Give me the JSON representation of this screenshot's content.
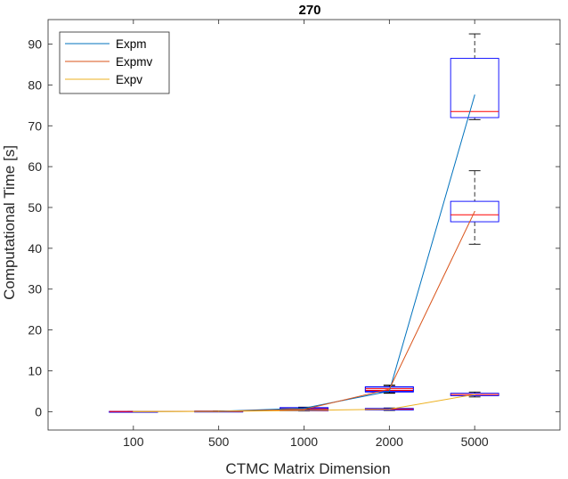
{
  "chart_data": {
    "type": "box",
    "title": "270",
    "xlabel": "CTMC Matrix Dimension",
    "ylabel": "Computational Time [s]",
    "categories": [
      "100",
      "500",
      "1000",
      "2000",
      "5000"
    ],
    "ylim": [
      -4.5,
      96
    ],
    "yticks": [
      "0",
      "10",
      "20",
      "30",
      "40",
      "50",
      "60",
      "70",
      "80",
      "90"
    ],
    "grid": false,
    "legend_position": "top-left",
    "series": [
      {
        "name": "Expm",
        "color": "#0072BD",
        "values": [
          0.02,
          0.1,
          0.85,
          5.0,
          77.5
        ]
      },
      {
        "name": "Expmv",
        "color": "#D95319",
        "values": [
          0.02,
          0.1,
          0.55,
          5.5,
          49.0
        ]
      },
      {
        "name": "Expv",
        "color": "#EDB120",
        "values": [
          0.01,
          0.05,
          0.3,
          0.6,
          4.2
        ]
      }
    ],
    "boxes": [
      {
        "category": "100",
        "set": "Expm",
        "q1": 0.0,
        "median": 0.02,
        "q3": 0.04,
        "whisker_low": 0.0,
        "whisker_high": 0.05
      },
      {
        "category": "100",
        "set": "Expmv",
        "q1": 0.0,
        "median": 0.02,
        "q3": 0.03,
        "whisker_low": 0.0,
        "whisker_high": 0.04
      },
      {
        "category": "100",
        "set": "Expv",
        "q1": 0.0,
        "median": 0.01,
        "q3": 0.02,
        "whisker_low": 0.0,
        "whisker_high": 0.03
      },
      {
        "category": "500",
        "set": "Expm",
        "q1": 0.05,
        "median": 0.1,
        "q3": 0.15,
        "whisker_low": 0.03,
        "whisker_high": 0.2
      },
      {
        "category": "500",
        "set": "Expmv",
        "q1": 0.05,
        "median": 0.1,
        "q3": 0.14,
        "whisker_low": 0.03,
        "whisker_high": 0.18
      },
      {
        "category": "500",
        "set": "Expv",
        "q1": 0.02,
        "median": 0.05,
        "q3": 0.08,
        "whisker_low": 0.01,
        "whisker_high": 0.1
      },
      {
        "category": "1000",
        "set": "Expm",
        "q1": 0.55,
        "median": 0.8,
        "q3": 1.0,
        "whisker_low": 0.45,
        "whisker_high": 1.1
      },
      {
        "category": "1000",
        "set": "Expmv",
        "q1": 0.4,
        "median": 0.55,
        "q3": 0.75,
        "whisker_low": 0.3,
        "whisker_high": 0.9
      },
      {
        "category": "1000",
        "set": "Expv",
        "q1": 0.2,
        "median": 0.3,
        "q3": 0.4,
        "whisker_low": 0.15,
        "whisker_high": 0.5
      },
      {
        "category": "2000",
        "set": "Expm",
        "q1": 4.8,
        "median": 5.2,
        "q3": 6.0,
        "whisker_low": 4.5,
        "whisker_high": 6.5
      },
      {
        "category": "2000",
        "set": "Expmv",
        "q1": 5.0,
        "median": 5.6,
        "q3": 6.1,
        "whisker_low": 4.6,
        "whisker_high": 6.4
      },
      {
        "category": "2000",
        "set": "Expv",
        "q1": 0.4,
        "median": 0.6,
        "q3": 0.8,
        "whisker_low": 0.3,
        "whisker_high": 0.9
      },
      {
        "category": "5000",
        "set": "Expm",
        "q1": 72.0,
        "median": 73.5,
        "q3": 86.5,
        "whisker_low": 71.5,
        "whisker_high": 92.5
      },
      {
        "category": "5000",
        "set": "Expmv",
        "q1": 46.5,
        "median": 48.2,
        "q3": 51.5,
        "whisker_low": 41.0,
        "whisker_high": 59.0
      },
      {
        "category": "5000",
        "set": "Expv",
        "q1": 3.9,
        "median": 4.2,
        "q3": 4.5,
        "whisker_low": 3.6,
        "whisker_high": 4.8
      }
    ],
    "box_edge_color": "#0000FF",
    "box_median_color": "#FF0000",
    "whisker_color": "#000000"
  }
}
